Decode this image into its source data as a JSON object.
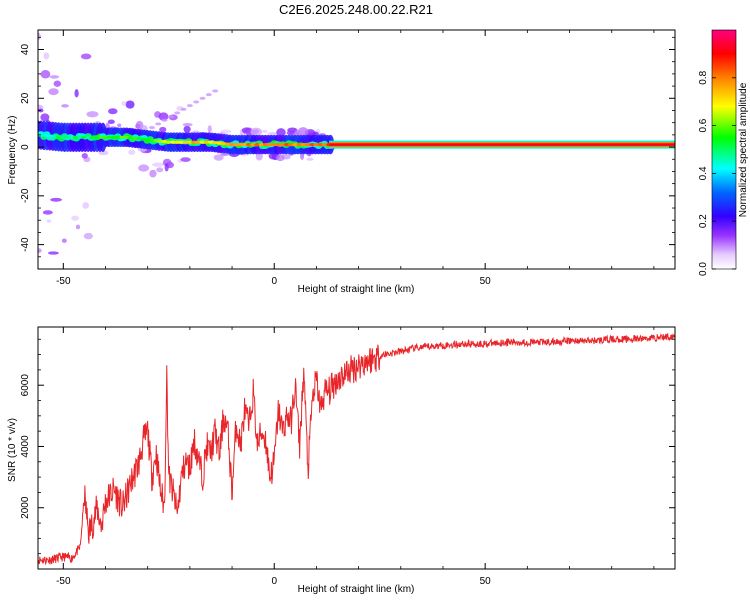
{
  "figure_title": "C2E6.2025.248.00.22.R21",
  "chart_data": [
    {
      "type": "heatmap",
      "panel": "spectrogram",
      "xlabel": "Height of straight line (km)",
      "ylabel": "Frequency (Hz)",
      "xlim": [
        -56,
        95
      ],
      "ylim": [
        -50,
        48
      ],
      "xticks": [
        -50,
        0,
        50
      ],
      "yticks": [
        -40,
        -20,
        0,
        20,
        40
      ],
      "colorbar": {
        "label": "Normalized spectral amplitude",
        "range": [
          0.0,
          1.0
        ],
        "ticks": [
          0.0,
          0.2,
          0.4,
          0.6,
          0.8
        ],
        "tick_labels": [
          "0.0",
          "0.2",
          "0.4",
          "0.6",
          "0.8"
        ],
        "colors": [
          "#ffffff",
          "#d9b3ff",
          "#8000ff",
          "#0000ff",
          "#00ffff",
          "#00ff00",
          "#ffff00",
          "#ff8000",
          "#ff0000",
          "#ff0080"
        ]
      },
      "ridge": {
        "description": "dominant frequency ridge vs height",
        "height": [
          -56,
          -50,
          -45,
          -40,
          -35,
          -30,
          -25,
          -20,
          -15,
          -10,
          -5,
          0,
          5,
          10,
          15,
          30,
          50,
          70,
          95
        ],
        "frequency": [
          5,
          4,
          4,
          4,
          4,
          3,
          2,
          2,
          2,
          1,
          1,
          1,
          1,
          1,
          1,
          1,
          1,
          1,
          1
        ],
        "amplitude": [
          0.5,
          0.55,
          0.55,
          0.6,
          0.65,
          0.6,
          0.7,
          0.8,
          0.75,
          0.8,
          0.85,
          0.85,
          0.85,
          0.85,
          0.95,
          0.95,
          0.95,
          0.95,
          0.95
        ]
      }
    },
    {
      "type": "line",
      "panel": "snr",
      "xlabel": "Height of straight line (km)",
      "ylabel": "SNR (10 * v/v)",
      "xlim": [
        -56,
        95
      ],
      "ylim": [
        0,
        7900
      ],
      "xticks": [
        -50,
        0,
        50
      ],
      "yticks": [
        2000,
        4000,
        6000
      ],
      "color": "#e8262a",
      "series": [
        {
          "name": "SNR",
          "x": [
            -56,
            -53,
            -50,
            -48,
            -46,
            -45,
            -44,
            -43,
            -42,
            -41,
            -40,
            -38,
            -36,
            -34,
            -32,
            -31,
            -30,
            -29,
            -28,
            -27,
            -26,
            -25.5,
            -25,
            -24,
            -23,
            -22,
            -21,
            -20,
            -19,
            -18,
            -17,
            -16,
            -15,
            -14,
            -13,
            -12,
            -11,
            -10,
            -9,
            -8,
            -7,
            -6,
            -5,
            -4,
            -3,
            -2,
            -1,
            0,
            1,
            2,
            3,
            4,
            5,
            6,
            7,
            8,
            9,
            10,
            11,
            12,
            13,
            15,
            18,
            22,
            26,
            30,
            33,
            36,
            40,
            45,
            50,
            55,
            60,
            65,
            70,
            75,
            80,
            85,
            90,
            95
          ],
          "y": [
            300,
            300,
            400,
            350,
            700,
            2400,
            1200,
            1500,
            2000,
            1400,
            2200,
            2600,
            2000,
            2800,
            3500,
            4200,
            4500,
            3000,
            3800,
            2600,
            2000,
            6500,
            3000,
            2500,
            1800,
            3000,
            3500,
            3300,
            4200,
            3600,
            3000,
            4000,
            3800,
            4500,
            3700,
            5000,
            4500,
            2500,
            4800,
            4000,
            5200,
            4600,
            5800,
            4000,
            4500,
            4200,
            3000,
            3500,
            5200,
            4500,
            5000,
            4800,
            6000,
            4000,
            6500,
            3200,
            5500,
            6200,
            5200,
            5800,
            5800,
            6200,
            6500,
            6800,
            7000,
            7100,
            7200,
            7250,
            7300,
            7350,
            7350,
            7400,
            7400,
            7400,
            7450,
            7450,
            7500,
            7500,
            7550,
            7600
          ]
        }
      ]
    }
  ]
}
